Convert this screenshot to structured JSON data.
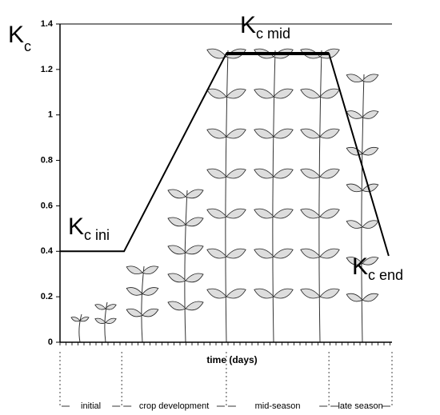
{
  "chart_data": {
    "type": "line",
    "xlabel": "time (days)",
    "ylabel": {
      "main": "K",
      "sub": "c"
    },
    "xlim": [
      0,
      100
    ],
    "ylim": [
      0,
      1.4
    ],
    "yticks": [
      0,
      0.2,
      0.4,
      0.6,
      0.8,
      1,
      1.2,
      1.4
    ],
    "series": [
      {
        "name": "Kc",
        "color": "#000000",
        "x": [
          0,
          19.3,
          50.1,
          81,
          99
        ],
        "values": [
          0.4,
          0.4,
          1.27,
          1.27,
          0.38
        ]
      }
    ],
    "annotations": [
      {
        "main": "K",
        "sub": "c ini"
      },
      {
        "main": "K",
        "sub": "c mid"
      },
      {
        "main": "K",
        "sub": "c end"
      }
    ],
    "stages": [
      "initial",
      "crop development",
      "mid-season",
      "late season"
    ],
    "stage_bounds": [
      0,
      18.6,
      50.1,
      81,
      100
    ]
  }
}
